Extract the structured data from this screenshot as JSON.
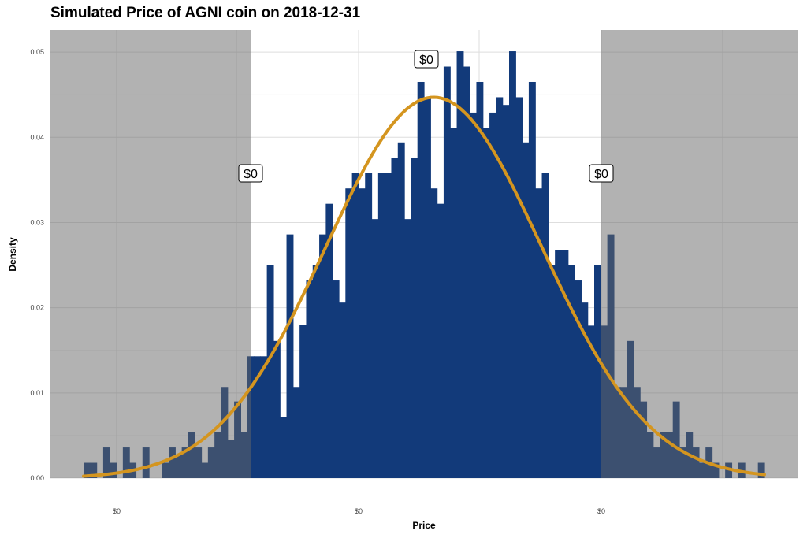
{
  "chart_data": {
    "type": "histogram",
    "title": "Simulated Price of AGNI coin on 2018-12-31",
    "xlabel": "Price",
    "ylabel": "Density",
    "x_tick_labels": [
      "$0",
      "$0",
      "$0"
    ],
    "y_ticks": [
      0,
      0.01,
      0.02,
      0.03,
      0.04,
      0.05
    ],
    "y_tick_labels": [
      "0.00",
      "0.01",
      "0.02",
      "0.03",
      "0.04",
      "0.05"
    ],
    "ylim": [
      0,
      0.0526
    ],
    "grid": true,
    "bar_color": "#123a7a",
    "shade_color": "#666666",
    "curve_color": "#d4951f",
    "bins_density": [
      0.0018,
      0.0018,
      0,
      0.0036,
      0.0018,
      0,
      0.0036,
      0.0018,
      0,
      0.0036,
      0,
      0,
      0.0018,
      0.0036,
      0.0027,
      0.0036,
      0.0054,
      0.0036,
      0.0018,
      0.0036,
      0.0054,
      0.0107,
      0.0045,
      0.009,
      0.0054,
      0.0143,
      0.0143,
      0.0143,
      0.025,
      0.0161,
      0.0072,
      0.0286,
      0.0107,
      0.018,
      0.0232,
      0.025,
      0.0286,
      0.0322,
      0.0232,
      0.0206,
      0.034,
      0.0358,
      0.034,
      0.0358,
      0.0304,
      0.0358,
      0.0358,
      0.0376,
      0.0394,
      0.0304,
      0.0376,
      0.0465,
      0.0447,
      0.034,
      0.0322,
      0.0483,
      0.0411,
      0.0501,
      0.0483,
      0.0429,
      0.0465,
      0.0411,
      0.0429,
      0.0447,
      0.0438,
      0.0501,
      0.0447,
      0.0394,
      0.0465,
      0.034,
      0.0358,
      0.025,
      0.0268,
      0.0268,
      0.025,
      0.0232,
      0.0206,
      0.0179,
      0.025,
      0.0179,
      0.0286,
      0.0107,
      0.0107,
      0.0161,
      0.0107,
      0.009,
      0.0054,
      0.0036,
      0.0054,
      0.0054,
      0.009,
      0.0036,
      0.0054,
      0.0036,
      0.0018,
      0.0036,
      0.0018,
      0,
      0.0018,
      0,
      0.0018,
      0,
      0,
      0.0018
    ],
    "normal_fit": {
      "mean_bin": 53.5,
      "sd_bins": 16.5,
      "peak_density": 0.0447
    },
    "shaded_regions": [
      "left tail",
      "right tail"
    ],
    "annotations": [
      {
        "label": "$0",
        "position": "left interval bound"
      },
      {
        "label": "$0",
        "position": "mean"
      },
      {
        "label": "$0",
        "position": "right interval bound"
      }
    ]
  }
}
